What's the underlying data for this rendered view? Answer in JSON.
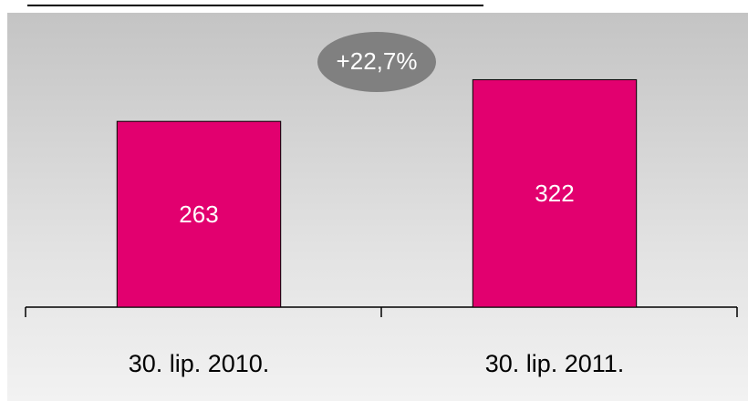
{
  "chart_data": {
    "type": "bar",
    "categories": [
      "30. lip. 2010.",
      "30. lip. 2011."
    ],
    "values": [
      263,
      322
    ],
    "color": "#e2006f",
    "ylim": [
      0,
      400
    ],
    "annotation": "+22,7%"
  }
}
